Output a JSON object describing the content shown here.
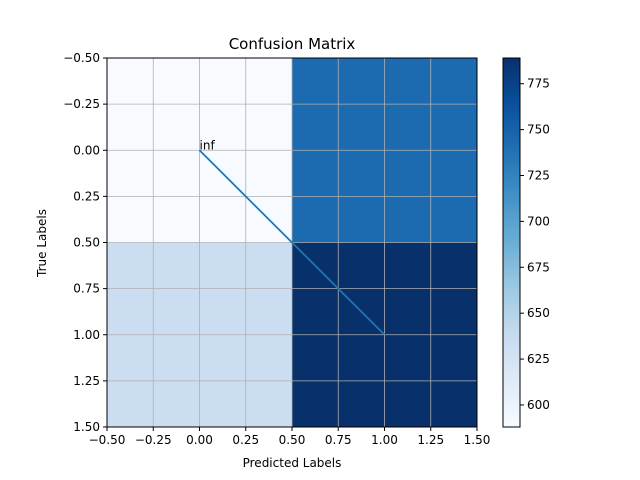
{
  "chart_data": {
    "type": "heatmap",
    "title": "Confusion Matrix",
    "xlabel": "Predicted Labels",
    "ylabel": "True Labels",
    "rows": 2,
    "cols": 2,
    "values": [
      [
        588,
        744
      ],
      [
        633,
        789
      ]
    ],
    "xlim": [
      -0.5,
      1.5
    ],
    "ylim": [
      1.5,
      -0.5
    ],
    "x_ticks": [
      -0.5,
      -0.25,
      0.0,
      0.25,
      0.5,
      0.75,
      1.0,
      1.25,
      1.5
    ],
    "x_tick_labels": [
      "−0.50",
      "−0.25",
      "0.00",
      "0.25",
      "0.50",
      "0.75",
      "1.00",
      "1.25",
      "1.50"
    ],
    "y_ticks": [
      -0.5,
      -0.25,
      0.0,
      0.25,
      0.5,
      0.75,
      1.0,
      1.25,
      1.5
    ],
    "y_tick_labels": [
      "−0.50",
      "−0.25",
      "0.00",
      "0.25",
      "0.50",
      "0.75",
      "1.00",
      "1.25",
      "1.50"
    ],
    "grid": true,
    "overlay_line": {
      "x": [
        0.0,
        0.5,
        1.0
      ],
      "y": [
        0.0,
        0.5,
        1.0
      ],
      "color": "#1f77b4"
    },
    "annotation": {
      "text": "inf",
      "x": 0.0,
      "y": 0.0
    },
    "colorbar": {
      "min": 588,
      "max": 789,
      "ticks": [
        600,
        625,
        650,
        675,
        700,
        725,
        750,
        775
      ],
      "tick_labels": [
        "600",
        "625",
        "650",
        "675",
        "700",
        "725",
        "750",
        "775"
      ],
      "colormap": "Blues"
    }
  }
}
